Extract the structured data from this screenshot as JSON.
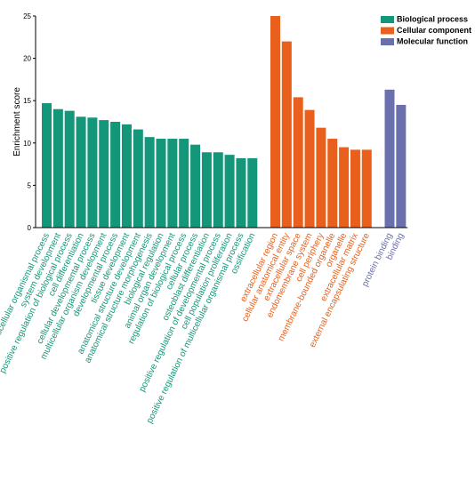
{
  "chart_data": {
    "type": "bar",
    "y_label": "Enrichment score",
    "ylim": [
      0,
      25
    ],
    "yticks": [
      0,
      5,
      10,
      15,
      20,
      25
    ],
    "groups": [
      {
        "name": "Biological process",
        "color": "#14967a",
        "categories": [
          "multicellular organismal process",
          "system development",
          "positive regulation of biological process",
          "cell differentiation",
          "cellular developmental process",
          "multicellular organism development",
          "developmental process",
          "tissue development",
          "anatomical structure development",
          "anatomical structure morphogenesis",
          "biological regulation",
          "animal organ development",
          "regulation of biological process",
          "cellular process",
          "osteoblast differentiation",
          "positive regulation of developmental process",
          "cell population proliferation",
          "positive regulation of multicellular organismal process",
          "ossification"
        ],
        "values": [
          14.7,
          14.0,
          13.8,
          13.1,
          13.0,
          12.7,
          12.5,
          12.2,
          11.6,
          10.7,
          10.5,
          10.5,
          10.5,
          9.8,
          8.9,
          8.9,
          8.6,
          8.2,
          8.2
        ]
      },
      {
        "name": "Cellular component",
        "color": "#e8601c",
        "categories": [
          "extracellular region",
          "cellular anatomical entity",
          "extracellular space",
          "endomembrane system",
          "cell periphery",
          "membrane-bounded organelle",
          "organelle",
          "extracellular matrix",
          "external encapsulating structure"
        ],
        "values": [
          25.0,
          22.0,
          15.4,
          13.9,
          11.8,
          10.5,
          9.5,
          9.2,
          9.2
        ]
      },
      {
        "name": "Molecular function",
        "color": "#6a6fad",
        "categories": [
          "protein binding",
          "binding"
        ],
        "values": [
          16.3,
          14.5
        ]
      }
    ]
  }
}
